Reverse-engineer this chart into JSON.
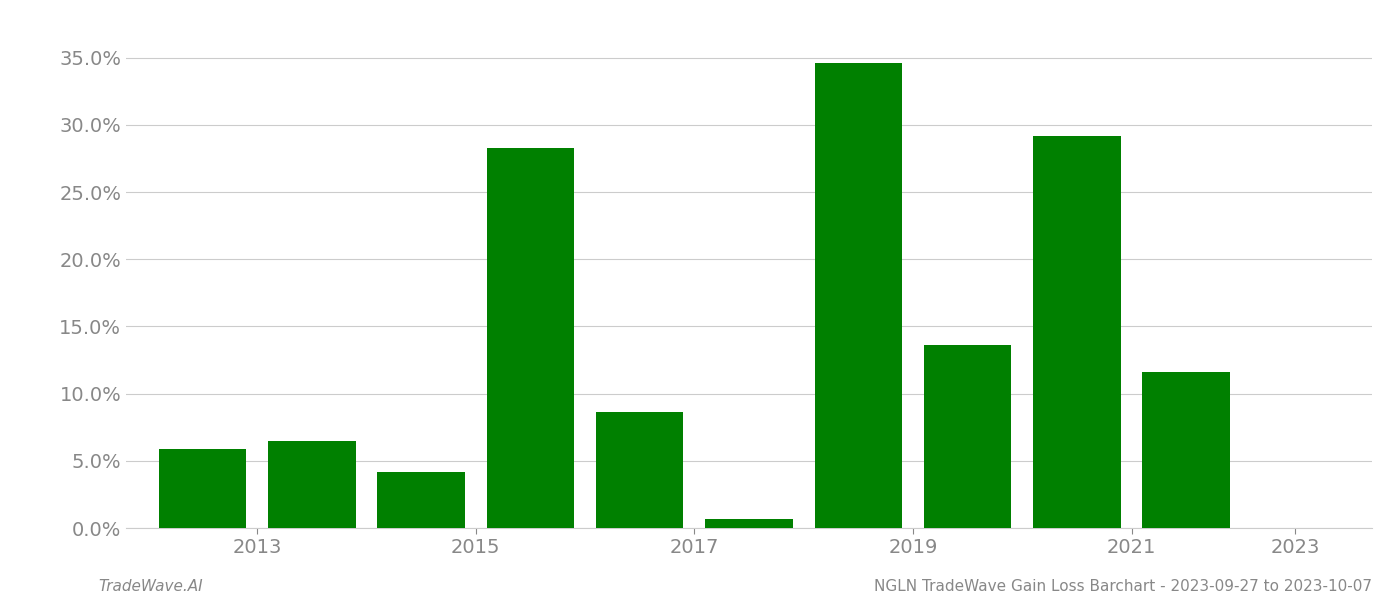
{
  "years": [
    2013,
    2014,
    2015,
    2016,
    2017,
    2018,
    2019,
    2020,
    2021,
    2022,
    2023
  ],
  "values": [
    0.059,
    0.065,
    0.042,
    0.283,
    0.086,
    0.007,
    0.346,
    0.136,
    0.292,
    0.116,
    0.0
  ],
  "bar_color": "#008000",
  "background_color": "#ffffff",
  "grid_color": "#cccccc",
  "title": "NGLN TradeWave Gain Loss Barchart - 2023-09-27 to 2023-10-07",
  "watermark": "TradeWave.AI",
  "ylim": [
    0,
    0.375
  ],
  "yticks": [
    0.0,
    0.05,
    0.1,
    0.15,
    0.2,
    0.25,
    0.3,
    0.35
  ],
  "title_fontsize": 11,
  "watermark_fontsize": 11,
  "tick_label_fontsize": 14,
  "axis_label_color": "#888888",
  "title_color": "#888888",
  "watermark_color": "#888888",
  "xtick_labels": [
    "2013",
    "2015",
    "2017",
    "2019",
    "2021",
    "2023"
  ],
  "xtick_positions": [
    2013.5,
    2015.5,
    2017.5,
    2019.5,
    2021.5,
    2023.0
  ]
}
